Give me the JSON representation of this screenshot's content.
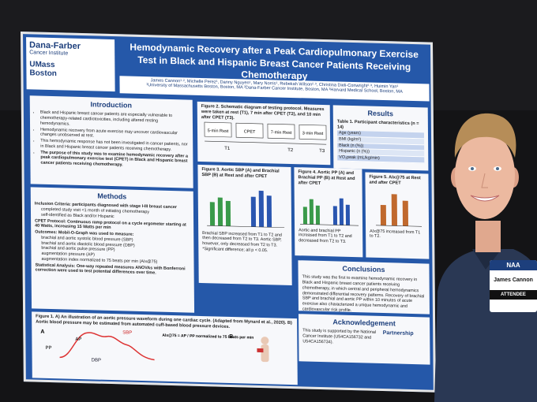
{
  "poster": {
    "logo_dfci": [
      "Dana-Farber",
      "Cancer Institute"
    ],
    "logo_umass": [
      "UMass",
      "Boston"
    ],
    "title": "Hemodynamic Recovery after a Peak Cardiopulmonary Exercise Test in Black and Hispanic Breast Cancer Patients Receiving Chemotherapy",
    "authors": "James Cannon¹·², Michelle Perez¹, Danny Nguyen¹, Mary Norris¹, Rebekah Wilson²·³, Christina Dieli-Conwright²·³, Huimin Yan¹",
    "affiliations": "¹University of Massachusetts Boston, Boston, MA ²Dana-Farber Cancer Institute, Boston, MA ³Harvard Medical School, Boston, MA",
    "introduction": {
      "heading": "Introduction",
      "bullets": [
        "Black and Hispanic breast cancer patients are especially vulnerable to chemotherapy-related cardiotoxicities, including altered resting hemodynamics.",
        "Hemodynamic recovery from acute exercise may uncover cardiovascular changes unobserved at rest.",
        "This hemodynamic response has not been investigated in cancer patients, nor in Black and Hispanic breast cancer patients receiving chemotherapy.",
        "The purpose of this study was to examine hemodynamic recovery after a peak cardiopulmonary exercise test (CPET) in Black and Hispanic breast cancer patients receiving chemotherapy."
      ]
    },
    "methods": {
      "heading": "Methods",
      "lines": [
        "Inclusion Criteria: participants diagnosed with stage I-III breast cancer",
        "completed study visit <1 month of initiating chemotherapy",
        "self-identified as Black and/or Hispanic",
        "CPET Protocol: Continuous ramp protocol on a cycle ergometer starting at 40 Watts, increasing 15 Watts per min",
        "Outcomes: Mobil-O-Graph was used to measure:",
        "brachial and aortic systolic blood pressure (SBP)",
        "brachial and aortic diastolic blood pressure (DBP)",
        "brachial and aortic pulse pressure (PP)",
        "augmentation pressure (AP)",
        "augmentation index normalized to 75 beats per min (AIx@75)",
        "Statistical Analysis: One-way repeated measures ANOVAs with Bonferroni correction were used to test potential differences over time."
      ]
    },
    "figure1": {
      "caption": "Figure 1. A) An illustration of an aortic pressure waveform during one cardiac cycle. (Adapted from Mynard et al., 2020). B) Aortic blood pressure may be estimated from automated cuff-based blood pressure devices.",
      "labels": [
        "A",
        "B",
        "SBP",
        "AP",
        "PP",
        "DBP",
        "AIx@75 = AP / PP normalized to 75 beats per min"
      ]
    },
    "figure2": {
      "caption": "Figure 2. Schematic diagram of testing protocol. Measures were taken at rest (T1), 7 min after CPET (T2), and 10 min after CPET (T3).",
      "boxes": [
        "5-min Rest",
        "CPET",
        "7-min Rest",
        "3-min Rest"
      ],
      "times": [
        "T1",
        "T2",
        "T3"
      ]
    },
    "figure3": {
      "caption": "Figure 3. Aortic SBP (A) and Brachial SBP (B) at Rest and after CPET",
      "text": "Brachial SBP increased from T1 to T2 and then decreased from T2 to T3. Aortic SBP, however, only decreased from T2 to T3.",
      "note": "*Significant difference; all p < 0.05."
    },
    "figure4": {
      "caption": "Figure 4. Aortic PP (A) and Brachial PP (B) at Rest and after CPET",
      "text": "Aortic and brachial PP increased from T1 to T2 and decreased from T2 to T3."
    },
    "figure5": {
      "caption": "Figure 5. AIx@75 at Rest and after CPET",
      "text": "AIx@75 increased from T1 to T2."
    },
    "results": {
      "heading": "Results",
      "table_title": "Table 1. Participant characteristics (n = 14)",
      "rows": [
        "Age (years)",
        "BMI (kg/m²)",
        "Black (n (%))",
        "Hispanic (n (%))",
        "VO₂peak (mL/kg/min)"
      ]
    },
    "conclusions": {
      "heading": "Conclusions",
      "text": "This study was the first to examine hemodynamic recovery in Black and Hispanic breast cancer patients receiving chemotherapy, in which central and peripheral hemodynamics demonstrated differential recovery patterns. Recovery of brachial SBP and brachial and aortic PP within 10 minutes of acute exercise also characterized a unique hemodynamic and cardiovascular risk profile."
    },
    "acknowledgement": {
      "heading": "Acknowledgement",
      "text": "This study is supported by the National Cancer Institute (U54CA156732 and U54CA156734).",
      "logo": "Partnership"
    }
  },
  "badge": {
    "event": "NAA",
    "name": "James Cannon",
    "role": "ATTENDEE"
  }
}
